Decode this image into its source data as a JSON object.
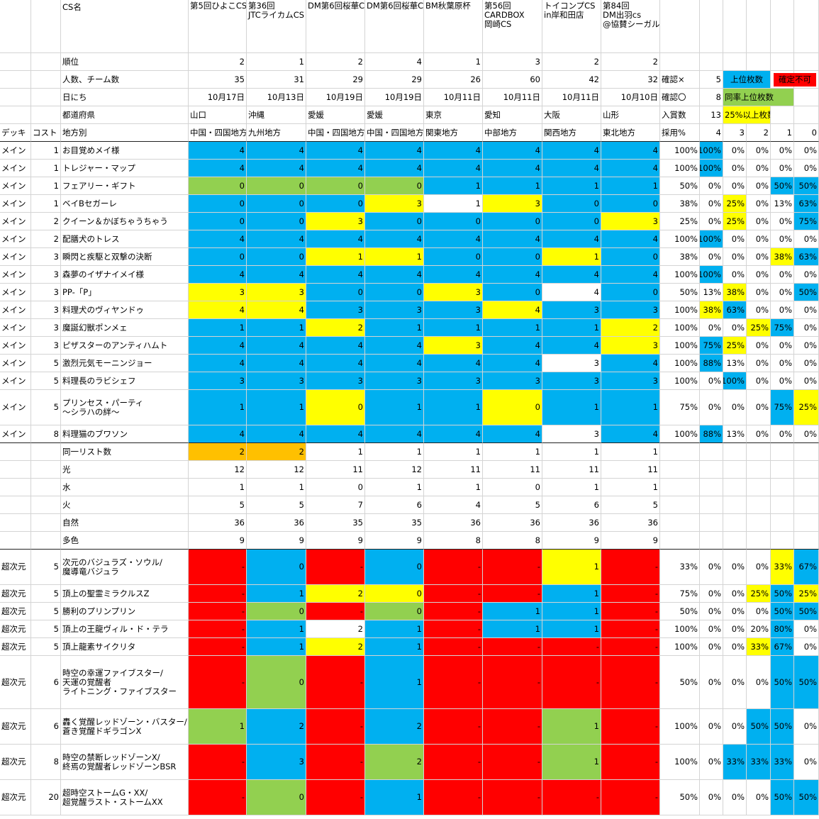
{
  "colors": {
    "B": "#00b0f0",
    "G": "#92d050",
    "Y": "#ffff00",
    "R": "#ff0000",
    "O": "#ffc000",
    "W": "#ffffff"
  },
  "header": {
    "cs_label": "CS名",
    "tournaments": [
      [
        "第5回ひよこCS"
      ],
      [
        "第36回",
        "JTCライカムCS"
      ],
      [
        "DM第6回桜華CS"
      ],
      [
        "DM第6回桜華CS"
      ],
      [
        "BM秋葉原杯"
      ],
      [
        "第56回",
        "CARDBOX",
        "岡崎CS"
      ],
      [
        "トイコンプCS",
        "in岸和田店"
      ],
      [
        "第84回",
        "DM出羽cs",
        "@協賛シーガル"
      ]
    ],
    "info_rows": [
      {
        "label": "順位",
        "values": [
          "2",
          "1",
          "2",
          "4",
          "1",
          "3",
          "2",
          "2"
        ]
      },
      {
        "label": "人数、チーム数",
        "values": [
          "35",
          "31",
          "29",
          "29",
          "26",
          "60",
          "42",
          "32"
        ]
      },
      {
        "label": "日にち",
        "values": [
          "10月17日",
          "10月13日",
          "10月19日",
          "10月19日",
          "10月11日",
          "10月11日",
          "10月11日",
          "10月10日"
        ]
      },
      {
        "label": "都道府県",
        "values": [
          "山口",
          "沖縄",
          "愛媛",
          "愛媛",
          "東京",
          "愛知",
          "大阪",
          "山形"
        ]
      },
      {
        "label": "地方別",
        "values": [
          "中国・四国地方",
          "九州地方",
          "中国・四国地方",
          "中国・四国地方",
          "関東地方",
          "中部地方",
          "関西地方",
          "東北地方"
        ]
      }
    ],
    "deck_label": "デッキ",
    "cost_label": "コスト"
  },
  "side_panel": {
    "row1": {
      "label": "確認×",
      "value": "5",
      "legend": "上位枚数",
      "legend2": "確定不可"
    },
    "row2": {
      "label": "確認〇",
      "value": "8",
      "legend": "同率上位枚数"
    },
    "row3": {
      "label": "入賞数",
      "value": "13",
      "legend": "25%以上枚数"
    },
    "rate_label": "採用%",
    "count_headers": [
      "4",
      "3",
      "2",
      "1",
      "0"
    ]
  },
  "main_rows": [
    {
      "deck": "メイン",
      "cost": "1",
      "name": [
        "お目覚めメイ様"
      ],
      "values": [
        "4",
        "4",
        "4",
        "4",
        "4",
        "4",
        "4",
        "4"
      ],
      "fills": "BBBBBBBB",
      "rate": "100%",
      "pcts": [
        "100%",
        "0%",
        "0%",
        "0%",
        "0%"
      ],
      "pfills": "BWWWW"
    },
    {
      "deck": "メイン",
      "cost": "1",
      "name": [
        "トレジャー・マップ"
      ],
      "values": [
        "4",
        "4",
        "4",
        "4",
        "4",
        "4",
        "4",
        "4"
      ],
      "fills": "BBBBBBBB",
      "rate": "100%",
      "pcts": [
        "100%",
        "0%",
        "0%",
        "0%",
        "0%"
      ],
      "pfills": "BWWWW"
    },
    {
      "deck": "メイン",
      "cost": "1",
      "name": [
        "フェアリー・ギフト"
      ],
      "values": [
        "0",
        "0",
        "0",
        "0",
        "1",
        "1",
        "1",
        "1"
      ],
      "fills": "GGGGBBBB",
      "rate": "50%",
      "pcts": [
        "0%",
        "0%",
        "0%",
        "50%",
        "50%"
      ],
      "pfills": "WWWBB"
    },
    {
      "deck": "メイン",
      "cost": "1",
      "name": [
        "ベイBセガーレ"
      ],
      "values": [
        "0",
        "0",
        "0",
        "3",
        "1",
        "3",
        "0",
        "0"
      ],
      "fills": "BBBYWYBB",
      "rate": "38%",
      "pcts": [
        "0%",
        "25%",
        "0%",
        "13%",
        "63%"
      ],
      "pfills": "WYWWB"
    },
    {
      "deck": "メイン",
      "cost": "2",
      "name": [
        "クイーン＆かぼちゃうちゃう"
      ],
      "values": [
        "0",
        "0",
        "3",
        "0",
        "0",
        "0",
        "0",
        "3"
      ],
      "fills": "BBYBBBBY",
      "rate": "25%",
      "pcts": [
        "0%",
        "25%",
        "0%",
        "0%",
        "75%"
      ],
      "pfills": "WYWWB"
    },
    {
      "deck": "メイン",
      "cost": "2",
      "name": [
        "配膳犬のトレス"
      ],
      "values": [
        "4",
        "4",
        "4",
        "4",
        "4",
        "4",
        "4",
        "4"
      ],
      "fills": "BBBBBBBB",
      "rate": "100%",
      "pcts": [
        "100%",
        "0%",
        "0%",
        "0%",
        "0%"
      ],
      "pfills": "BWWWW"
    },
    {
      "deck": "メイン",
      "cost": "3",
      "name": [
        "瞬閃と疾駆と双撃の決断"
      ],
      "values": [
        "0",
        "0",
        "1",
        "1",
        "0",
        "0",
        "1",
        "0"
      ],
      "fills": "BBYYBBYB",
      "rate": "38%",
      "pcts": [
        "0%",
        "0%",
        "0%",
        "38%",
        "63%"
      ],
      "pfills": "WWWYB"
    },
    {
      "deck": "メイン",
      "cost": "3",
      "name": [
        "森夢のイザナイメイ様"
      ],
      "values": [
        "4",
        "4",
        "4",
        "4",
        "4",
        "4",
        "4",
        "4"
      ],
      "fills": "BBBBBBBB",
      "rate": "100%",
      "pcts": [
        "100%",
        "0%",
        "0%",
        "0%",
        "0%"
      ],
      "pfills": "BWWWW"
    },
    {
      "deck": "メイン",
      "cost": "3",
      "name": [
        "PP-「P」"
      ],
      "values": [
        "3",
        "3",
        "0",
        "0",
        "3",
        "0",
        "4",
        "0"
      ],
      "fills": "YYBBYBWB",
      "rate": "50%",
      "pcts": [
        "13%",
        "38%",
        "0%",
        "0%",
        "50%"
      ],
      "pfills": "WYWWB"
    },
    {
      "deck": "メイン",
      "cost": "3",
      "name": [
        "料理犬のヴィヤンドゥ"
      ],
      "values": [
        "4",
        "4",
        "3",
        "3",
        "3",
        "4",
        "3",
        "3"
      ],
      "fills": "YYBBBYBB",
      "rate": "100%",
      "pcts": [
        "38%",
        "63%",
        "0%",
        "0%",
        "0%"
      ],
      "pfills": "YBWWW"
    },
    {
      "deck": "メイン",
      "cost": "3",
      "name": [
        "魔誕幻獣ポンメェ"
      ],
      "values": [
        "1",
        "1",
        "2",
        "1",
        "1",
        "1",
        "1",
        "2"
      ],
      "fills": "BBYBBBBY",
      "rate": "100%",
      "pcts": [
        "0%",
        "0%",
        "25%",
        "75%",
        "0%"
      ],
      "pfills": "WWYBW"
    },
    {
      "deck": "メイン",
      "cost": "3",
      "name": [
        "ピザスターのアンティハムト"
      ],
      "values": [
        "4",
        "4",
        "4",
        "4",
        "3",
        "4",
        "4",
        "3"
      ],
      "fills": "BBBBYBBY",
      "rate": "100%",
      "pcts": [
        "75%",
        "25%",
        "0%",
        "0%",
        "0%"
      ],
      "pfills": "BYWWW"
    },
    {
      "deck": "メイン",
      "cost": "5",
      "name": [
        "激烈元気モーニンジョー"
      ],
      "values": [
        "4",
        "4",
        "4",
        "4",
        "4",
        "4",
        "3",
        "4"
      ],
      "fills": "BBBBBBWB",
      "rate": "100%",
      "pcts": [
        "88%",
        "13%",
        "0%",
        "0%",
        "0%"
      ],
      "pfills": "BWWWW"
    },
    {
      "deck": "メイン",
      "cost": "5",
      "name": [
        "料理長のラビシェフ"
      ],
      "values": [
        "3",
        "3",
        "3",
        "3",
        "3",
        "3",
        "3",
        "3"
      ],
      "fills": "BBBBBBBB",
      "rate": "100%",
      "pcts": [
        "0%",
        "100%",
        "0%",
        "0%",
        "0%"
      ],
      "pfills": "WBWWW"
    },
    {
      "deck": "メイン",
      "cost": "5",
      "name": [
        "プリンセス・パーティ",
        "～シラハの絆～"
      ],
      "values": [
        "1",
        "1",
        "0",
        "1",
        "1",
        "0",
        "1",
        "1"
      ],
      "fills": "BBYBBYBB",
      "rate": "75%",
      "pcts": [
        "0%",
        "0%",
        "0%",
        "75%",
        "25%"
      ],
      "pfills": "WWWBY"
    },
    {
      "deck": "メイン",
      "cost": "8",
      "name": [
        "料理猫のブワソン"
      ],
      "values": [
        "4",
        "4",
        "4",
        "4",
        "4",
        "4",
        "3",
        "4"
      ],
      "fills": "BBBBBBWB",
      "rate": "100%",
      "pcts": [
        "88%",
        "13%",
        "0%",
        "0%",
        "0%"
      ],
      "pfills": "BWWWW"
    }
  ],
  "stat_rows": [
    {
      "label": "同一リスト数",
      "values": [
        "2",
        "2",
        "1",
        "1",
        "1",
        "1",
        "1",
        "1"
      ],
      "fills": "OOWWWWWW"
    },
    {
      "label": "光",
      "values": [
        "12",
        "12",
        "11",
        "12",
        "11",
        "11",
        "11",
        "11"
      ],
      "fills": "WWWWWWWW"
    },
    {
      "label": "水",
      "values": [
        "1",
        "1",
        "0",
        "1",
        "1",
        "0",
        "1",
        "1"
      ],
      "fills": "WWWWWWWW"
    },
    {
      "label": "火",
      "values": [
        "5",
        "5",
        "7",
        "6",
        "4",
        "5",
        "6",
        "5"
      ],
      "fills": "WWWWWWWW"
    },
    {
      "label": "自然",
      "values": [
        "36",
        "36",
        "35",
        "35",
        "36",
        "36",
        "36",
        "36"
      ],
      "fills": "WWWWWWWW"
    },
    {
      "label": "多色",
      "values": [
        "9",
        "9",
        "9",
        "9",
        "8",
        "8",
        "9",
        "9"
      ],
      "fills": "WWWWWWWW"
    }
  ],
  "hyper_rows": [
    {
      "deck": "超次元",
      "cost": "5",
      "name": [
        "次元のバジュラズ・ソウル/",
        "魔導竜バジュラ"
      ],
      "values": [
        "-",
        "0",
        "-",
        "0",
        "-",
        "-",
        "1",
        "-"
      ],
      "fills": "RBRBRRYR",
      "rate": "33%",
      "pcts": [
        "0%",
        "0%",
        "0%",
        "33%",
        "67%"
      ],
      "pfills": "WWWYB"
    },
    {
      "deck": "超次元",
      "cost": "5",
      "name": [
        "頂上の聖霊ミラクルスZ"
      ],
      "values": [
        "-",
        "1",
        "2",
        "0",
        "-",
        "-",
        "1",
        "-"
      ],
      "fills": "RBYYRRBR",
      "rate": "75%",
      "pcts": [
        "0%",
        "0%",
        "25%",
        "50%",
        "25%"
      ],
      "pfills": "WWYBY"
    },
    {
      "deck": "超次元",
      "cost": "5",
      "name": [
        "勝利のプリンプリン"
      ],
      "values": [
        "-",
        "0",
        "-",
        "0",
        "-",
        "1",
        "1",
        "-"
      ],
      "fills": "RGRGRBBR",
      "rate": "50%",
      "pcts": [
        "0%",
        "0%",
        "0%",
        "50%",
        "50%"
      ],
      "pfills": "WWWBB"
    },
    {
      "deck": "超次元",
      "cost": "5",
      "name": [
        "頂上の王龍ヴィル・ド・テラ"
      ],
      "values": [
        "-",
        "1",
        "2",
        "1",
        "-",
        "1",
        "1",
        "-"
      ],
      "fills": "RBWBRBBR",
      "rate": "100%",
      "pcts": [
        "0%",
        "0%",
        "20%",
        "80%",
        "0%"
      ],
      "pfills": "WWWBW"
    },
    {
      "deck": "超次元",
      "cost": "5",
      "name": [
        "頂上龍素サイクリタ"
      ],
      "values": [
        "-",
        "1",
        "2",
        "1",
        "-",
        "-",
        "-",
        "-"
      ],
      "fills": "RBYBRRRR",
      "rate": "100%",
      "pcts": [
        "0%",
        "0%",
        "33%",
        "67%",
        "0%"
      ],
      "pfills": "WWYBW"
    },
    {
      "deck": "超次元",
      "cost": "6",
      "name": [
        "時空の幸運ファイブスター/",
        "天運の覚醒者",
        "ライトニング・ファイブスター"
      ],
      "values": [
        "-",
        "0",
        "-",
        "1",
        "-",
        "-",
        "-",
        "-"
      ],
      "fills": "RGRBRRRR",
      "rate": "50%",
      "pcts": [
        "0%",
        "0%",
        "0%",
        "50%",
        "50%"
      ],
      "pfills": "WWWBB"
    },
    {
      "deck": "超次元",
      "cost": "6",
      "name": [
        "轟く覚醒レッドゾーン・バスター/",
        "蒼き覚醒ドギラゴンX"
      ],
      "values": [
        "1",
        "2",
        "-",
        "2",
        "-",
        "-",
        "1",
        "-"
      ],
      "fills": "GBRBRRGR",
      "rate": "100%",
      "pcts": [
        "0%",
        "0%",
        "50%",
        "50%",
        "0%"
      ],
      "pfills": "WWBBW"
    },
    {
      "deck": "超次元",
      "cost": "8",
      "name": [
        "時空の禁断レッドゾーンX/",
        "終焉の覚醒者レッドゾーンBSR"
      ],
      "values": [
        "-",
        "3",
        "-",
        "2",
        "-",
        "-",
        "1",
        "-"
      ],
      "fills": "RBRGRRGR",
      "rate": "100%",
      "pcts": [
        "0%",
        "33%",
        "33%",
        "33%",
        "0%"
      ],
      "pfills": "WBBBW"
    },
    {
      "deck": "超次元",
      "cost": "20",
      "name": [
        "超時空ストームG・XX/",
        "超覚醒ラスト・ストームXX"
      ],
      "values": [
        "-",
        "0",
        "-",
        "1",
        "-",
        "-",
        "-",
        "-"
      ],
      "fills": "RGRBRRRR",
      "rate": "50%",
      "pcts": [
        "0%",
        "0%",
        "0%",
        "50%",
        "50%"
      ],
      "pfills": "WWWBB"
    }
  ]
}
